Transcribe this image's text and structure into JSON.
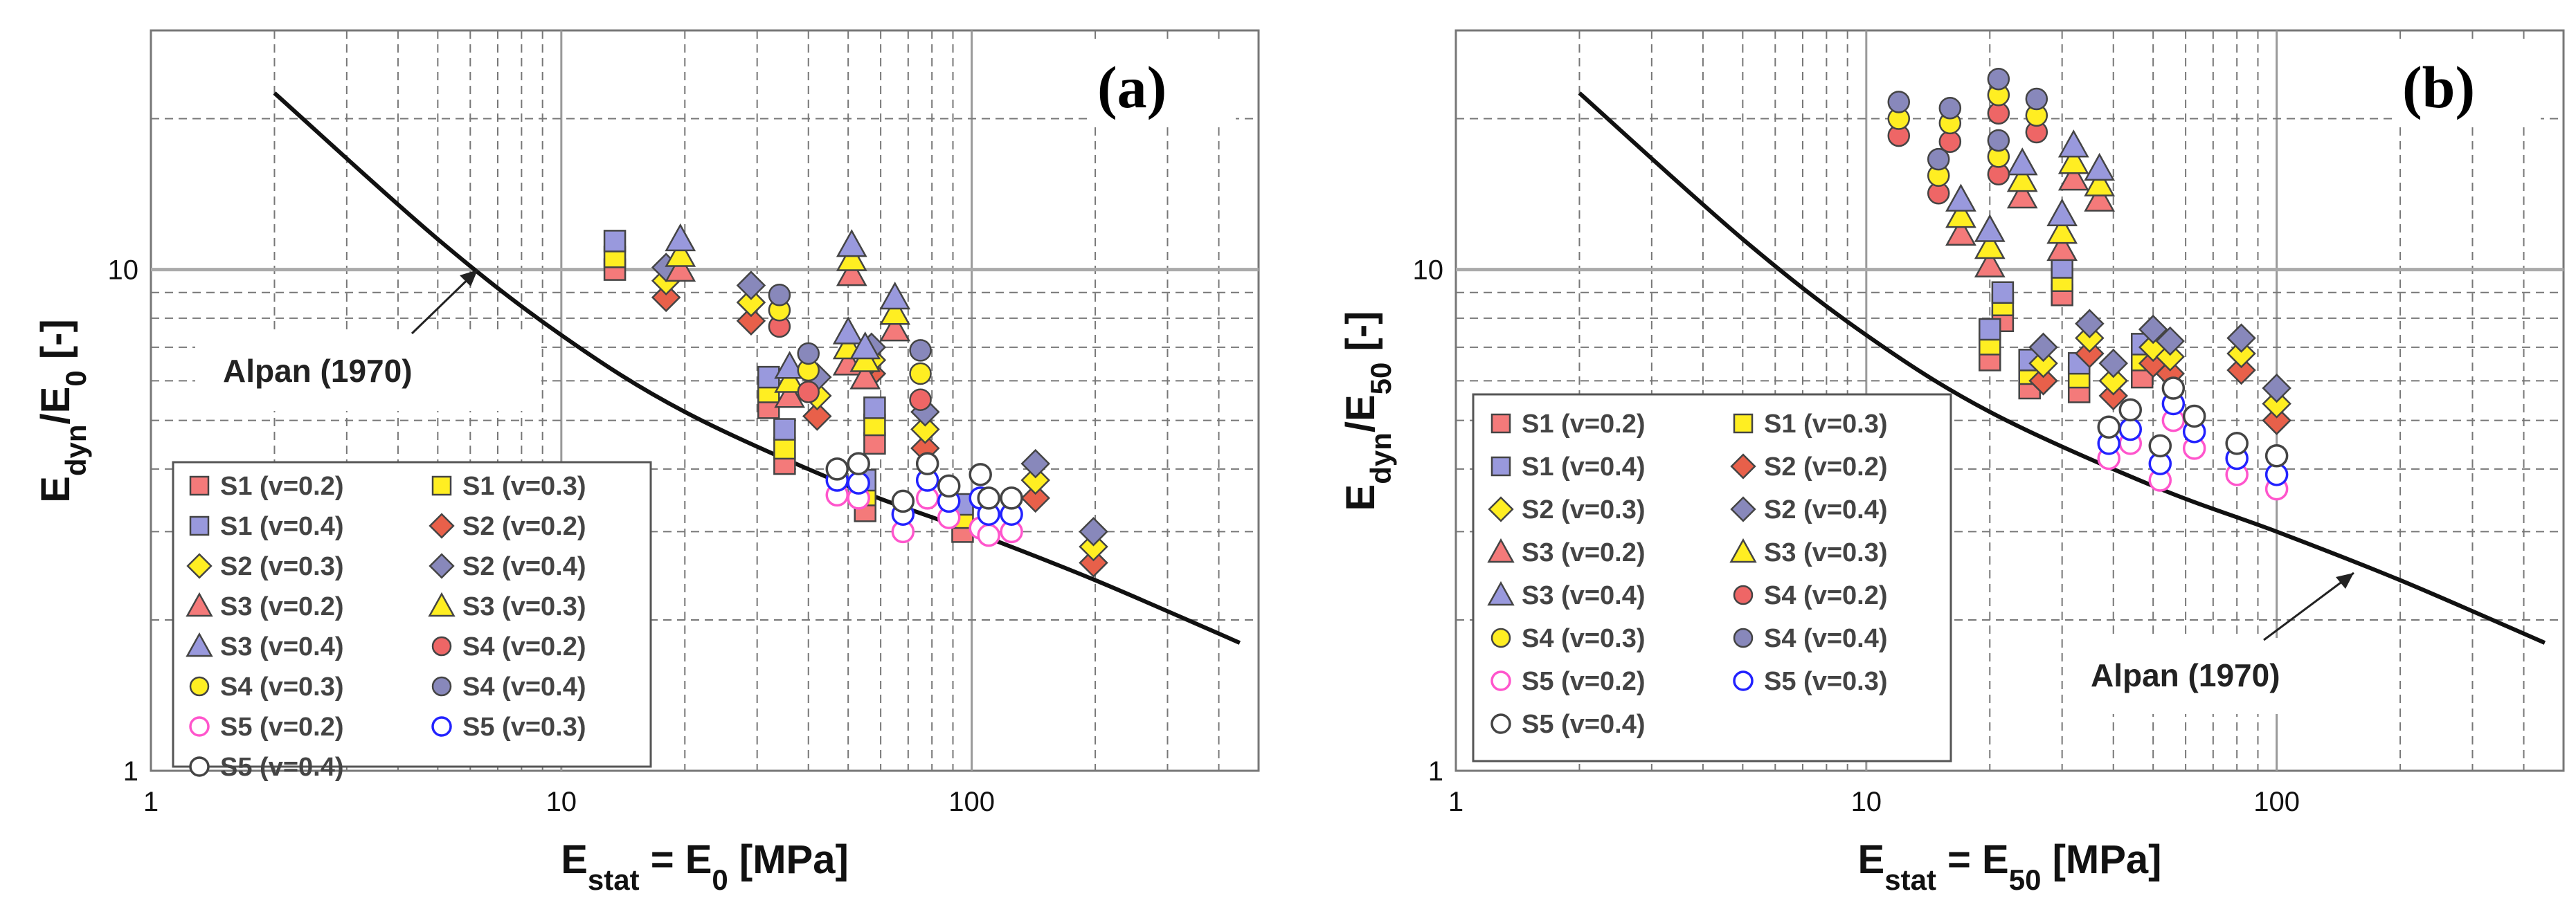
{
  "chart_data": [
    {
      "type": "scatter",
      "panel_label": "(a)",
      "xlabel": {
        "base": "E",
        "sub": "stat",
        "rest": " = E",
        "sub2": "0",
        "rest2": " [MPa]"
      },
      "ylabel": {
        "base": "E",
        "sub": "dyn",
        "mid": "/E",
        "sub2": "0",
        "rest": " [-]"
      },
      "x_scale": "log",
      "y_scale": "log",
      "xlim": [
        1,
        500
      ],
      "ylim": [
        1,
        30
      ],
      "x_ticks": [
        "1",
        "10",
        "100"
      ],
      "y_ticks": [
        "1",
        "10"
      ],
      "legend_columns": 2,
      "reference_curve": {
        "name": "Alpan (1970)",
        "points": [
          [
            2,
            22.5
          ],
          [
            5,
            11.5
          ],
          [
            10,
            7.4
          ],
          [
            20,
            5.2
          ],
          [
            50,
            3.7
          ],
          [
            100,
            3.0
          ],
          [
            200,
            2.4
          ],
          [
            450,
            1.8
          ]
        ]
      },
      "series": [
        {
          "name": "S1 (v=0.2)",
          "marker": "square",
          "color": "#f47a7a",
          "points": [
            [
              13.5,
              10.0
            ],
            [
              32,
              5.3
            ],
            [
              35,
              4.1
            ],
            [
              55,
              3.3
            ],
            [
              58,
              4.5
            ],
            [
              95,
              3.0
            ]
          ]
        },
        {
          "name": "S1 (v=0.3)",
          "marker": "square",
          "color": "#ffee22",
          "points": [
            [
              13.5,
              10.6
            ],
            [
              32,
              5.7
            ],
            [
              35,
              4.4
            ],
            [
              55,
              3.55
            ],
            [
              58,
              4.9
            ],
            [
              95,
              3.2
            ]
          ]
        },
        {
          "name": "S1 (v=0.4)",
          "marker": "square",
          "color": "#9999dd",
          "points": [
            [
              13.5,
              11.4
            ],
            [
              32,
              6.1
            ],
            [
              35,
              4.8
            ],
            [
              55,
              3.8
            ],
            [
              58,
              5.3
            ],
            [
              95,
              3.4
            ]
          ]
        },
        {
          "name": "S2  (v=0.2)",
          "marker": "diamond",
          "color": "#e8604a",
          "points": [
            [
              18,
              8.8
            ],
            [
              29,
              7.9
            ],
            [
              42,
              5.1
            ],
            [
              57,
              6.2
            ],
            [
              77,
              4.4
            ],
            [
              143,
              3.5
            ],
            [
              198,
              2.6
            ]
          ]
        },
        {
          "name": "S2 (v=0.3)",
          "marker": "diamond",
          "color": "#ffee22",
          "points": [
            [
              18,
              9.5
            ],
            [
              29,
              8.6
            ],
            [
              42,
              5.6
            ],
            [
              57,
              6.6
            ],
            [
              77,
              4.8
            ],
            [
              143,
              3.8
            ],
            [
              198,
              2.8
            ]
          ]
        },
        {
          "name": "S2 (v=0.4)",
          "marker": "diamond",
          "color": "#8888bb",
          "points": [
            [
              18,
              10.1
            ],
            [
              29,
              9.3
            ],
            [
              42,
              6.1
            ],
            [
              57,
              7.0
            ],
            [
              77,
              5.2
            ],
            [
              143,
              4.1
            ],
            [
              198,
              3.0
            ]
          ]
        },
        {
          "name": "S3 (v=0.2)",
          "marker": "triangle",
          "color": "#f47a7a",
          "points": [
            [
              19.5,
              10.0
            ],
            [
              36,
              5.6
            ],
            [
              50,
              6.5
            ],
            [
              51,
              9.8
            ],
            [
              55,
              6.1
            ],
            [
              65,
              7.6
            ]
          ]
        },
        {
          "name": "S3 (v=0.3)",
          "marker": "triangle",
          "color": "#ffee22",
          "points": [
            [
              19.5,
              10.7
            ],
            [
              36,
              6.0
            ],
            [
              50,
              7.0
            ],
            [
              51,
              10.5
            ],
            [
              55,
              6.6
            ],
            [
              65,
              8.2
            ]
          ]
        },
        {
          "name": "S3 (v=0.4)",
          "marker": "triangle",
          "color": "#9999dd",
          "points": [
            [
              19.5,
              11.5
            ],
            [
              36,
              6.4
            ],
            [
              50,
              7.5
            ],
            [
              51,
              11.2
            ],
            [
              55,
              7.0
            ],
            [
              65,
              8.8
            ]
          ]
        },
        {
          "name": "S4 (v=0.2)",
          "marker": "circle",
          "color": "#ee6666",
          "points": [
            [
              34,
              7.7
            ],
            [
              40,
              5.7
            ],
            [
              75,
              5.5
            ]
          ]
        },
        {
          "name": "S4 (v=0.3)",
          "marker": "circle",
          "color": "#ffee22",
          "points": [
            [
              34,
              8.3
            ],
            [
              40,
              6.3
            ],
            [
              75,
              6.2
            ]
          ]
        },
        {
          "name": "S4 (v=0.4)",
          "marker": "circle",
          "color": "#8888bb",
          "points": [
            [
              34,
              8.9
            ],
            [
              40,
              6.8
            ],
            [
              75,
              6.9
            ]
          ]
        },
        {
          "name": "S5 (v=0.2)",
          "marker": "open-circle",
          "color": "#ff55cc",
          "points": [
            [
              47,
              3.55
            ],
            [
              53,
              3.5
            ],
            [
              68,
              3.0
            ],
            [
              78,
              3.5
            ],
            [
              88,
              3.2
            ],
            [
              105,
              3.05
            ],
            [
              110,
              2.95
            ],
            [
              125,
              3.0
            ]
          ]
        },
        {
          "name": "S5 (v=0.3)",
          "marker": "open-circle",
          "color": "#2222ff",
          "points": [
            [
              47,
              3.8
            ],
            [
              53,
              3.75
            ],
            [
              68,
              3.25
            ],
            [
              78,
              3.8
            ],
            [
              88,
              3.45
            ],
            [
              105,
              3.5
            ],
            [
              110,
              3.25
            ],
            [
              125,
              3.25
            ]
          ]
        },
        {
          "name": "S5 (v=0.4)",
          "marker": "open-circle",
          "color": "#444444",
          "points": [
            [
              47,
              4.0
            ],
            [
              53,
              4.1
            ],
            [
              68,
              3.45
            ],
            [
              78,
              4.1
            ],
            [
              88,
              3.7
            ],
            [
              105,
              3.9
            ],
            [
              110,
              3.5
            ],
            [
              125,
              3.5
            ]
          ]
        }
      ]
    },
    {
      "type": "scatter",
      "panel_label": "(b)",
      "xlabel": {
        "base": "E",
        "sub": "stat",
        "rest": " = E",
        "sub2": "50",
        "rest2": " [MPa]"
      },
      "ylabel": {
        "base": "E",
        "sub": "dyn",
        "mid": "/E",
        "sub2": "50",
        "rest": " [-]"
      },
      "x_scale": "log",
      "y_scale": "log",
      "xlim": [
        1,
        500
      ],
      "ylim": [
        1,
        30
      ],
      "x_ticks": [
        "1",
        "10",
        "100"
      ],
      "y_ticks": [
        "1",
        "10"
      ],
      "legend_columns": 2,
      "reference_curve": {
        "name": "Alpan (1970)",
        "points": [
          [
            2,
            22.5
          ],
          [
            5,
            11.5
          ],
          [
            10,
            7.4
          ],
          [
            20,
            5.2
          ],
          [
            50,
            3.7
          ],
          [
            100,
            3.0
          ],
          [
            200,
            2.4
          ],
          [
            450,
            1.8
          ]
        ]
      },
      "series": [
        {
          "name": "S1 (v=0.2)",
          "marker": "square",
          "color": "#f47a7a",
          "points": [
            [
              20,
              6.6
            ],
            [
              21.5,
              7.9
            ],
            [
              25,
              5.8
            ],
            [
              30,
              8.9
            ],
            [
              33,
              5.7
            ],
            [
              47,
              6.1
            ]
          ]
        },
        {
          "name": "S1 (v=0.3)",
          "marker": "square",
          "color": "#ffee22",
          "points": [
            [
              20,
              7.1
            ],
            [
              21.5,
              8.5
            ],
            [
              25,
              6.2
            ],
            [
              30,
              9.5
            ],
            [
              33,
              6.1
            ],
            [
              47,
              6.6
            ]
          ]
        },
        {
          "name": "S1 (v=0.4)",
          "marker": "square",
          "color": "#9999dd",
          "points": [
            [
              20,
              7.6
            ],
            [
              21.5,
              9.0
            ],
            [
              25,
              6.6
            ],
            [
              30,
              10.1
            ],
            [
              33,
              6.5
            ],
            [
              47,
              7.1
            ]
          ]
        },
        {
          "name": "S2 (v=0.2)",
          "marker": "diamond",
          "color": "#e8604a",
          "points": [
            [
              27,
              6.0
            ],
            [
              35,
              6.8
            ],
            [
              40,
              5.6
            ],
            [
              50,
              6.5
            ],
            [
              55,
              6.2
            ],
            [
              82,
              6.3
            ],
            [
              100,
              5.0
            ]
          ]
        },
        {
          "name": "S2 (v=0.3)",
          "marker": "diamond",
          "color": "#ffee22",
          "points": [
            [
              27,
              6.5
            ],
            [
              35,
              7.3
            ],
            [
              40,
              6.0
            ],
            [
              50,
              7.0
            ],
            [
              55,
              6.7
            ],
            [
              82,
              6.8
            ],
            [
              100,
              5.4
            ]
          ]
        },
        {
          "name": "S2 (v=0.4)",
          "marker": "diamond",
          "color": "#8888bb",
          "points": [
            [
              27,
              7.0
            ],
            [
              35,
              7.8
            ],
            [
              40,
              6.5
            ],
            [
              50,
              7.6
            ],
            [
              55,
              7.2
            ],
            [
              82,
              7.3
            ],
            [
              100,
              5.8
            ]
          ]
        },
        {
          "name": "S3 (v=0.2)",
          "marker": "triangle",
          "color": "#f47a7a",
          "points": [
            [
              17,
              11.8
            ],
            [
              20,
              10.2
            ],
            [
              24,
              14.0
            ],
            [
              30,
              11.0
            ],
            [
              32,
              15.2
            ],
            [
              37,
              13.8
            ]
          ]
        },
        {
          "name": "S3 (v=0.3)",
          "marker": "triangle",
          "color": "#ffee22",
          "points": [
            [
              17,
              12.8
            ],
            [
              20,
              11.1
            ],
            [
              24,
              15.1
            ],
            [
              30,
              11.9
            ],
            [
              32,
              16.4
            ],
            [
              37,
              14.8
            ]
          ]
        },
        {
          "name": "S3 (v=0.4)",
          "marker": "triangle",
          "color": "#9999dd",
          "points": [
            [
              17,
              13.8
            ],
            [
              20,
              12.0
            ],
            [
              24,
              16.3
            ],
            [
              30,
              12.9
            ],
            [
              32,
              17.7
            ],
            [
              37,
              15.9
            ]
          ]
        },
        {
          "name": "S4 (v=0.2)",
          "marker": "circle",
          "color": "#ee6666",
          "points": [
            [
              12,
              18.5
            ],
            [
              15,
              14.2
            ],
            [
              16,
              18.0
            ],
            [
              21,
              15.5
            ],
            [
              21,
              20.5
            ],
            [
              26,
              18.8
            ]
          ]
        },
        {
          "name": "S4 (v=0.3)",
          "marker": "circle",
          "color": "#ffee22",
          "points": [
            [
              12,
              20.0
            ],
            [
              15,
              15.4
            ],
            [
              16,
              19.6
            ],
            [
              21,
              16.8
            ],
            [
              21,
              22.3
            ],
            [
              26,
              20.3
            ]
          ]
        },
        {
          "name": "S4 (v=0.4)",
          "marker": "circle",
          "color": "#8888bb",
          "points": [
            [
              12,
              21.6
            ],
            [
              15,
              16.6
            ],
            [
              16,
              21.0
            ],
            [
              21,
              18.1
            ],
            [
              21,
              24.0
            ],
            [
              26,
              21.9
            ]
          ]
        },
        {
          "name": "S5 (v=0.2)",
          "marker": "open-circle",
          "color": "#ff55cc",
          "points": [
            [
              39,
              4.2
            ],
            [
              44,
              4.5
            ],
            [
              52,
              3.8
            ],
            [
              56,
              5.0
            ],
            [
              63,
              4.4
            ],
            [
              80,
              3.9
            ],
            [
              100,
              3.65
            ]
          ]
        },
        {
          "name": "S5 (v=0.3)",
          "marker": "open-circle",
          "color": "#2222ff",
          "points": [
            [
              39,
              4.5
            ],
            [
              44,
              4.8
            ],
            [
              52,
              4.1
            ],
            [
              56,
              5.4
            ],
            [
              63,
              4.75
            ],
            [
              80,
              4.2
            ],
            [
              100,
              3.9
            ]
          ]
        },
        {
          "name": "S5 (v=0.4)",
          "marker": "open-circle",
          "color": "#444444",
          "points": [
            [
              39,
              4.85
            ],
            [
              44,
              5.25
            ],
            [
              52,
              4.45
            ],
            [
              56,
              5.8
            ],
            [
              63,
              5.1
            ],
            [
              80,
              4.5
            ],
            [
              100,
              4.25
            ]
          ]
        }
      ]
    }
  ]
}
